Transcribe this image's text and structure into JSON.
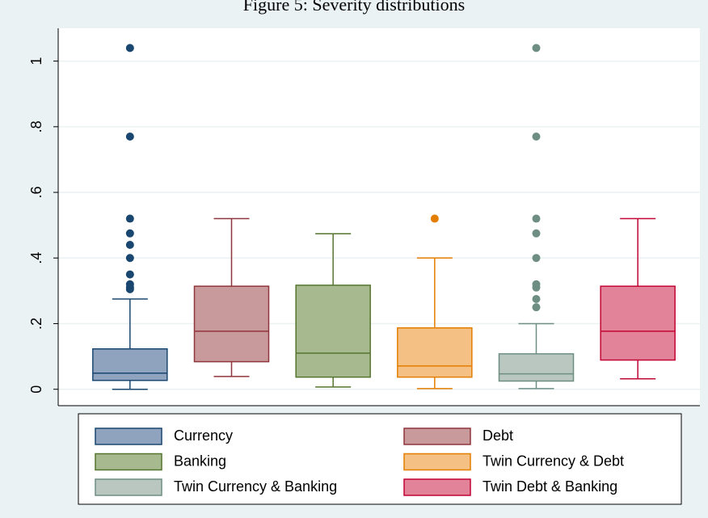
{
  "chart_data": {
    "type": "box",
    "title": "Figure 5: Severity distributions",
    "ylim": [
      -0.05,
      1.1
    ],
    "yticks": [
      0,
      {
        "value": 0.2,
        "label": ".2"
      },
      {
        "value": 0.4,
        "label": ".4"
      },
      {
        "value": 0.6,
        "label": ".6"
      },
      {
        "value": 0.8,
        "label": ".8"
      },
      1
    ],
    "grid": true,
    "series": [
      {
        "name": "Currency",
        "color": "#1a476f",
        "fill": "#8fa3bf",
        "min": 0,
        "q1": 0.027,
        "median": 0.049,
        "q3": 0.123,
        "max": 0.275,
        "outliers": [
          1.04,
          0.77,
          0.52,
          0.475,
          0.44,
          0.4,
          0.35,
          0.32,
          0.31,
          0.305
        ]
      },
      {
        "name": "Debt",
        "color": "#90353b",
        "fill": "#c99a9c",
        "min": 0.039,
        "q1": 0.084,
        "median": 0.177,
        "q3": 0.314,
        "max": 0.52,
        "outliers": []
      },
      {
        "name": "Banking",
        "color": "#55752f",
        "fill": "#a7b98f",
        "min": 0.007,
        "q1": 0.037,
        "median": 0.11,
        "q3": 0.317,
        "max": 0.474,
        "outliers": []
      },
      {
        "name": "Twin Currency & Debt",
        "color": "#e37e00",
        "fill": "#f5c084",
        "min": 0.002,
        "q1": 0.037,
        "median": 0.071,
        "q3": 0.187,
        "max": 0.4,
        "outliers": [
          0.52
        ]
      },
      {
        "name": "Twin Currency & Banking",
        "color": "#6e8e84",
        "fill": "#b9c7c0",
        "min": 0.002,
        "q1": 0.025,
        "median": 0.047,
        "q3": 0.108,
        "max": 0.2,
        "outliers": [
          1.04,
          0.77,
          0.52,
          0.475,
          0.4,
          0.32,
          0.31,
          0.275,
          0.25
        ]
      },
      {
        "name": "Twin Debt & Banking",
        "color": "#c10534",
        "fill": "#e38399",
        "min": 0.032,
        "q1": 0.089,
        "median": 0.177,
        "q3": 0.314,
        "max": 0.52,
        "outliers": []
      }
    ]
  }
}
